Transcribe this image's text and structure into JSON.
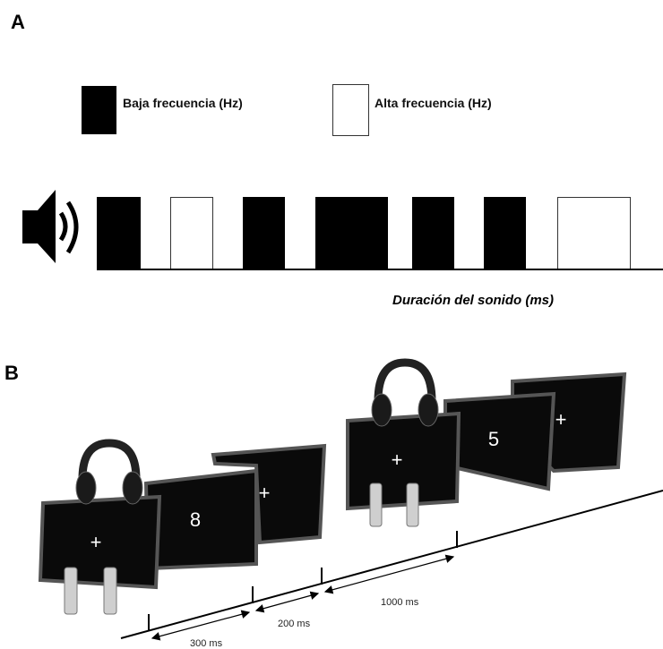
{
  "panel_a": {
    "label": "A",
    "legend": [
      {
        "label": "Baja frecuencia (Hz)"
      },
      {
        "label": "Alta frecuencia (Hz)"
      }
    ],
    "axis_label": "Duración del sonido (ms)"
  },
  "panel_b": {
    "label": "B",
    "screens": [
      "+",
      "8",
      "+",
      "+",
      "5",
      "+"
    ],
    "intervals": [
      "300 ms",
      "200 ms",
      "1000 ms"
    ]
  }
}
